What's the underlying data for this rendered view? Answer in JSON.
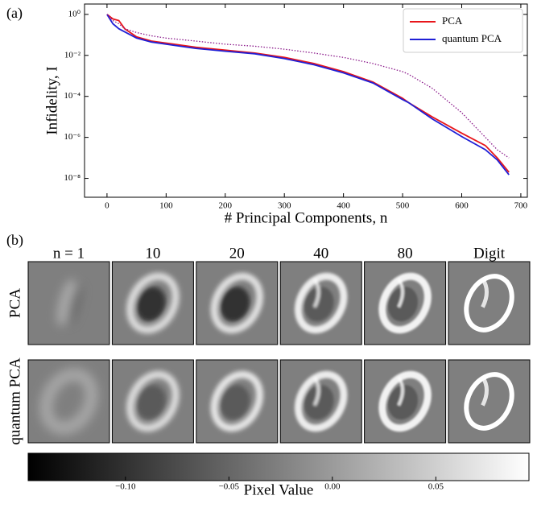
{
  "chart_data": [
    {
      "type": "line",
      "panel_label": "(a)",
      "xlabel": "# Principal Components, n",
      "ylabel": "Infidelity, I",
      "x": [
        0,
        10,
        20,
        30,
        50,
        75,
        100,
        150,
        200,
        250,
        300,
        350,
        400,
        450,
        500,
        510,
        550,
        600,
        640,
        660,
        680
      ],
      "series": [
        {
          "name": "PCA",
          "color": "#e8161b",
          "values": [
            1,
            0.6,
            0.5,
            0.2,
            0.08,
            0.05,
            0.04,
            0.025,
            0.018,
            0.013,
            0.008,
            0.004,
            0.0016,
            0.0005,
            8e-05,
            5e-05,
            1e-05,
            1.6e-06,
            4e-07,
            1e-07,
            2e-08
          ]
        },
        {
          "name": "quantum PCA",
          "color": "#1f1fd6",
          "values": [
            1,
            0.35,
            0.2,
            0.14,
            0.07,
            0.045,
            0.035,
            0.022,
            0.016,
            0.012,
            0.007,
            0.0035,
            0.0014,
            0.00045,
            7e-05,
            5e-05,
            8e-06,
            1.1e-06,
            2.5e-07,
            8e-08,
            1.5e-08
          ]
        },
        {
          "color": "#8b1a8b",
          "dash": "dotted",
          "values": [
            1,
            0.5,
            0.35,
            0.2,
            0.13,
            0.09,
            0.07,
            0.05,
            0.035,
            0.028,
            0.02,
            0.013,
            0.008,
            0.004,
            0.0016,
            0.0012,
            0.00025,
            1.6e-05,
            1e-06,
            2.5e-07,
            1e-07
          ]
        }
      ],
      "xlim": [
        -38,
        711
      ],
      "xticks": [
        0,
        100,
        200,
        300,
        400,
        500,
        600,
        700
      ],
      "ylim": [
        3.2,
        1.2e-09
      ],
      "ylog": true,
      "yticks": [
        {
          "value": 1,
          "label": "10⁰"
        },
        {
          "value": 0.01,
          "label": "10⁻²"
        },
        {
          "value": 0.0001,
          "label": "10⁻⁴"
        },
        {
          "value": 1e-06,
          "label": "10⁻⁶"
        },
        {
          "value": 1e-08,
          "label": "10⁻⁸"
        }
      ],
      "legend": "upper right"
    },
    {
      "type": "image-grid",
      "panel_label": "(b)",
      "columns": [
        "n = 1",
        "10",
        "20",
        "40",
        "80",
        "Digit"
      ],
      "rows": [
        "PCA",
        "quantum PCA"
      ],
      "clim": [
        -0.147,
        0.095
      ],
      "cticks": [
        {
          "value": -0.1,
          "label": "−0.10"
        },
        {
          "value": -0.05,
          "label": "−0.05"
        },
        {
          "value": 0,
          "label": "0.00"
        },
        {
          "value": 0.05,
          "label": "0.05"
        }
      ],
      "clabel": "Pixel Value"
    }
  ]
}
